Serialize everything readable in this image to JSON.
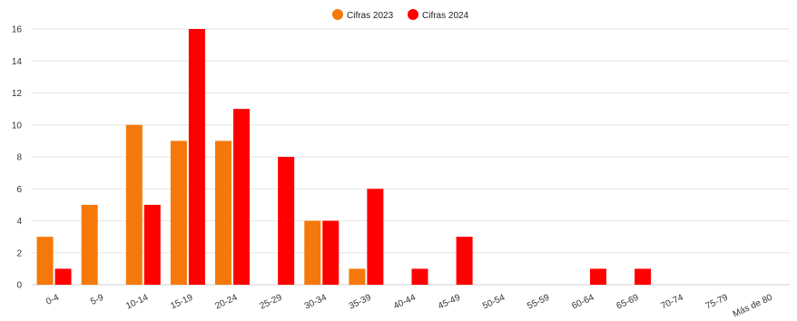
{
  "chart_data": {
    "type": "bar",
    "categories": [
      "0-4",
      "5-9",
      "10-14",
      "15-19",
      "20-24",
      "25-29",
      "30-34",
      "35-39",
      "40-44",
      "45-49",
      "50-54",
      "55-59",
      "60-64",
      "65-69",
      "70-74",
      "75-79",
      "Más de 80"
    ],
    "series": [
      {
        "name": "Cifras 2023",
        "color": "#F5790A",
        "values": [
          3,
          5,
          10,
          9,
          9,
          0,
          4,
          1,
          0,
          0,
          0,
          0,
          0,
          0,
          0,
          0,
          0
        ]
      },
      {
        "name": "Cifras 2024",
        "color": "#FF0000",
        "values": [
          1,
          0,
          5,
          16,
          11,
          8,
          4,
          6,
          1,
          3,
          0,
          0,
          1,
          1,
          0,
          0,
          0
        ]
      }
    ],
    "title": "",
    "xlabel": "",
    "ylabel": "",
    "ylim": [
      0,
      16
    ],
    "yticks": [
      "0",
      "2",
      "4",
      "6",
      "8",
      "10",
      "12",
      "14",
      "16"
    ],
    "grid": true,
    "legend_position": "top-center"
  }
}
